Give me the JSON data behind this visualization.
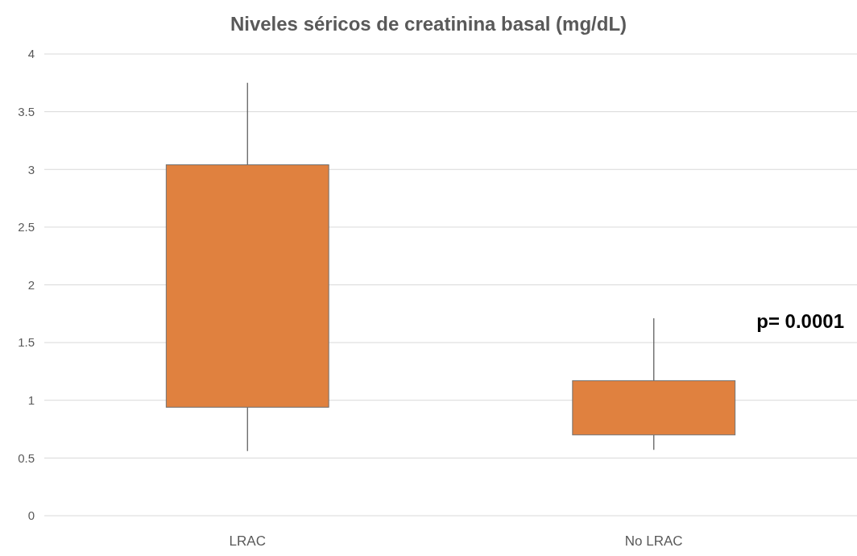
{
  "chart_data": {
    "type": "box",
    "title": "Niveles séricos de creatinina basal (mg/dL)",
    "categories": [
      "LRAC",
      "No LRAC"
    ],
    "color": "#e0813f",
    "boxes": [
      {
        "low": 0.56,
        "q1": 0.94,
        "q3": 3.04,
        "high": 3.75
      },
      {
        "low": 0.57,
        "q1": 0.7,
        "q3": 1.17,
        "high": 1.71
      }
    ],
    "ylim": [
      0,
      4
    ],
    "yticks": [
      0,
      0.5,
      1,
      1.5,
      2,
      2.5,
      3,
      3.5,
      4
    ],
    "grid": "y",
    "annotations": [
      "p= 0.0001"
    ]
  }
}
